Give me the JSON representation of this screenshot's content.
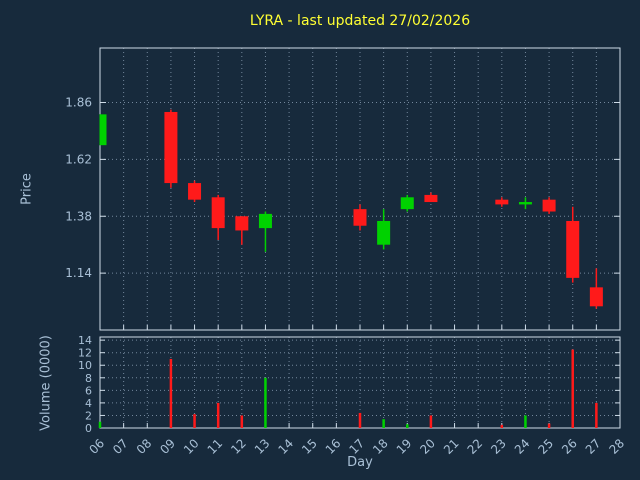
{
  "title": "LYRA - last updated 27/02/2026",
  "colors": {
    "background": "#172a3c",
    "up": "#00d200",
    "down": "#ff1a1a",
    "title": "#ffff33",
    "axis_text": "#a9c0d6",
    "grid": "#73879c",
    "frame": "#cfdce8"
  },
  "chart_data": [
    {
      "type": "candlestick",
      "title": "LYRA - last updated 27/02/2026",
      "xlabel": "Day",
      "ylabel": "Price",
      "ylim": [
        0.9,
        2.09
      ],
      "grid": "dotted",
      "x_ticks": [
        {
          "label": "06",
          "value": 6
        },
        {
          "label": "07",
          "value": 7
        },
        {
          "label": "08",
          "value": 8
        },
        {
          "label": "09",
          "value": 9
        },
        {
          "label": "10",
          "value": 10
        },
        {
          "label": "11",
          "value": 11
        },
        {
          "label": "12",
          "value": 12
        },
        {
          "label": "13",
          "value": 13
        },
        {
          "label": "14",
          "value": 14
        },
        {
          "label": "15",
          "value": 15
        },
        {
          "label": "16",
          "value": 16
        },
        {
          "label": "17",
          "value": 17
        },
        {
          "label": "18",
          "value": 18
        },
        {
          "label": "19",
          "value": 19
        },
        {
          "label": "20",
          "value": 20
        },
        {
          "label": "21",
          "value": 21
        },
        {
          "label": "22",
          "value": 22
        },
        {
          "label": "23",
          "value": 23
        },
        {
          "label": "24",
          "value": 24
        },
        {
          "label": "25",
          "value": 25
        },
        {
          "label": "26",
          "value": 26
        },
        {
          "label": "27",
          "value": 27
        },
        {
          "label": "28",
          "value": 28
        }
      ],
      "y_ticks": [
        {
          "label": "1.14",
          "value": 1.14
        },
        {
          "label": "1.38",
          "value": 1.38
        },
        {
          "label": "1.62",
          "value": 1.62
        },
        {
          "label": "1.86",
          "value": 1.86
        }
      ],
      "candles": [
        {
          "day": 6,
          "open": 1.68,
          "high": 1.81,
          "low": 1.68,
          "close": 1.81,
          "dir": "up"
        },
        {
          "day": 9,
          "open": 1.82,
          "high": 1.83,
          "low": 1.5,
          "close": 1.52,
          "dir": "down"
        },
        {
          "day": 10,
          "open": 1.52,
          "high": 1.53,
          "low": 1.44,
          "close": 1.45,
          "dir": "down"
        },
        {
          "day": 11,
          "open": 1.46,
          "high": 1.47,
          "low": 1.28,
          "close": 1.33,
          "dir": "down"
        },
        {
          "day": 12,
          "open": 1.38,
          "high": 1.38,
          "low": 1.26,
          "close": 1.32,
          "dir": "down"
        },
        {
          "day": 13,
          "open": 1.33,
          "high": 1.4,
          "low": 1.23,
          "close": 1.39,
          "dir": "up"
        },
        {
          "day": 17,
          "open": 1.41,
          "high": 1.43,
          "low": 1.32,
          "close": 1.34,
          "dir": "down"
        },
        {
          "day": 18,
          "open": 1.26,
          "high": 1.41,
          "low": 1.24,
          "close": 1.36,
          "dir": "up"
        },
        {
          "day": 19,
          "open": 1.41,
          "high": 1.47,
          "low": 1.4,
          "close": 1.46,
          "dir": "up"
        },
        {
          "day": 20,
          "open": 1.47,
          "high": 1.48,
          "low": 1.44,
          "close": 1.44,
          "dir": "down"
        },
        {
          "day": 23,
          "open": 1.45,
          "high": 1.46,
          "low": 1.42,
          "close": 1.43,
          "dir": "down"
        },
        {
          "day": 24,
          "open": 1.43,
          "high": 1.46,
          "low": 1.41,
          "close": 1.44,
          "dir": "up"
        },
        {
          "day": 25,
          "open": 1.45,
          "high": 1.46,
          "low": 1.39,
          "close": 1.4,
          "dir": "down"
        },
        {
          "day": 26,
          "open": 1.36,
          "high": 1.42,
          "low": 1.1,
          "close": 1.12,
          "dir": "down"
        },
        {
          "day": 27,
          "open": 1.08,
          "high": 1.16,
          "low": 0.99,
          "close": 1.0,
          "dir": "down"
        }
      ]
    },
    {
      "type": "bar",
      "ylabel": "Volume (0000)",
      "ylim": [
        0,
        14.5
      ],
      "grid": "dotted",
      "y_ticks": [
        {
          "label": "0",
          "value": 0
        },
        {
          "label": "2",
          "value": 2
        },
        {
          "label": "4",
          "value": 4
        },
        {
          "label": "6",
          "value": 6
        },
        {
          "label": "8",
          "value": 8
        },
        {
          "label": "10",
          "value": 10
        },
        {
          "label": "12",
          "value": 12
        },
        {
          "label": "14",
          "value": 14
        }
      ],
      "bars": [
        {
          "day": 6,
          "value": 1.0,
          "dir": "up"
        },
        {
          "day": 9,
          "value": 11.0,
          "dir": "down"
        },
        {
          "day": 10,
          "value": 2.2,
          "dir": "down"
        },
        {
          "day": 11,
          "value": 4.0,
          "dir": "down"
        },
        {
          "day": 12,
          "value": 2.0,
          "dir": "down"
        },
        {
          "day": 13,
          "value": 8.0,
          "dir": "up"
        },
        {
          "day": 17,
          "value": 2.4,
          "dir": "down"
        },
        {
          "day": 18,
          "value": 1.4,
          "dir": "up"
        },
        {
          "day": 19,
          "value": 0.6,
          "dir": "up"
        },
        {
          "day": 20,
          "value": 2.0,
          "dir": "down"
        },
        {
          "day": 23,
          "value": 0.5,
          "dir": "down"
        },
        {
          "day": 24,
          "value": 2.0,
          "dir": "up"
        },
        {
          "day": 25,
          "value": 0.7,
          "dir": "down"
        },
        {
          "day": 26,
          "value": 12.5,
          "dir": "down"
        },
        {
          "day": 27,
          "value": 4.0,
          "dir": "down"
        }
      ]
    }
  ]
}
